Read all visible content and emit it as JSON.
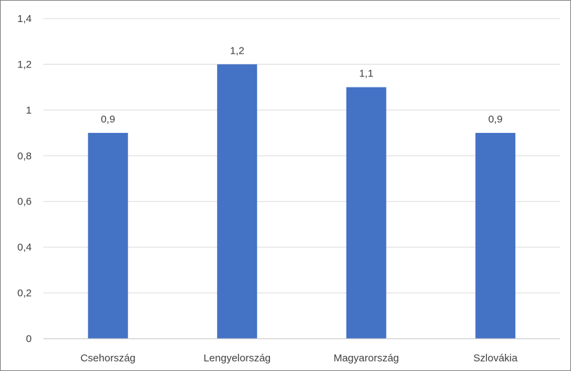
{
  "chart_data": {
    "type": "bar",
    "title": "",
    "xlabel": "",
    "ylabel": "",
    "categories": [
      "Csehország",
      "Lengyelország",
      "Magyarország",
      "Szlovákia"
    ],
    "values": [
      0.9,
      1.2,
      1.1,
      0.9
    ],
    "value_labels": [
      "0,9",
      "1,2",
      "1,1",
      "0,9"
    ],
    "ylim": [
      0,
      1.4
    ],
    "y_ticks": [
      0,
      0.2,
      0.4,
      0.6,
      0.8,
      1,
      1.2,
      1.4
    ],
    "y_tick_labels": [
      "0",
      "0,2",
      "0,4",
      "0,6",
      "0,8",
      "1",
      "1,2",
      "1,4"
    ],
    "grid": true,
    "legend": "none",
    "bar_color": "#4472c4"
  }
}
